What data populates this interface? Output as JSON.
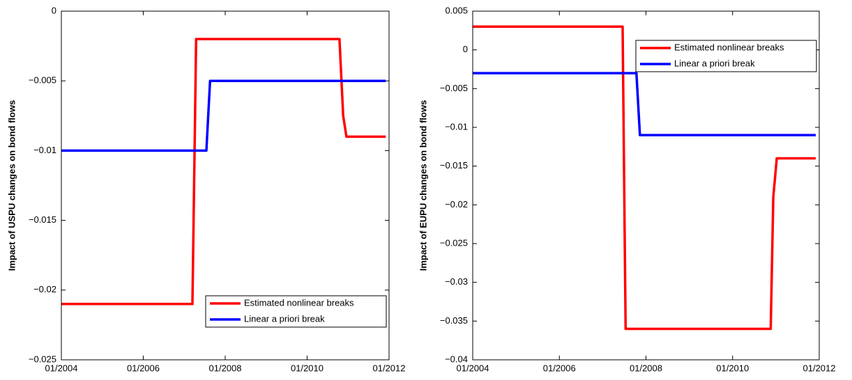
{
  "chart_data": [
    {
      "type": "line",
      "ylabel": "Impact of USPU changes on bond flows",
      "xlim": [
        2004,
        2012
      ],
      "xticks": [
        {
          "value": 2004,
          "label": "01/2004"
        },
        {
          "value": 2006,
          "label": "01/2006"
        },
        {
          "value": 2008,
          "label": "01/2008"
        },
        {
          "value": 2010,
          "label": "01/2010"
        },
        {
          "value": 2012,
          "label": "01/2012"
        }
      ],
      "ylim": [
        -0.025,
        0
      ],
      "yticks": [
        {
          "value": -0.025,
          "label": "−0.025"
        },
        {
          "value": -0.02,
          "label": "−0.02"
        },
        {
          "value": -0.015,
          "label": "−0.015"
        },
        {
          "value": -0.01,
          "label": "−0.01"
        },
        {
          "value": -0.005,
          "label": "−0.005"
        },
        0
      ],
      "legend": "lower right",
      "series": [
        {
          "name": "Estimated nonlinear breaks",
          "color": "#ff0000",
          "x": [
            2004,
            2007.2,
            2007.29,
            2010.79,
            2010.88,
            2010.96,
            2011.92
          ],
          "values": [
            -0.021,
            -0.021,
            -0.002,
            -0.002,
            -0.0075,
            -0.009,
            -0.009
          ]
        },
        {
          "name": "Linear a priori break",
          "color": "#0000ff",
          "x": [
            2004,
            2007.54,
            2007.63,
            2011.92
          ],
          "values": [
            -0.01,
            -0.01,
            -0.005,
            -0.005
          ]
        }
      ]
    },
    {
      "type": "line",
      "ylabel": "Impact of EUPU changes on bond flows",
      "xlim": [
        2004,
        2012
      ],
      "xticks": [
        {
          "value": 2004,
          "label": "01/2004"
        },
        {
          "value": 2006,
          "label": "01/2006"
        },
        {
          "value": 2008,
          "label": "01/2008"
        },
        {
          "value": 2010,
          "label": "01/2010"
        },
        {
          "value": 2012,
          "label": "01/2012"
        }
      ],
      "ylim": [
        -0.04,
        0.005
      ],
      "yticks": [
        {
          "value": -0.04,
          "label": "−0.04"
        },
        {
          "value": -0.035,
          "label": "−0.035"
        },
        {
          "value": -0.03,
          "label": "−0.03"
        },
        {
          "value": -0.025,
          "label": "−0.025"
        },
        {
          "value": -0.02,
          "label": "−0.02"
        },
        {
          "value": -0.015,
          "label": "−0.015"
        },
        {
          "value": -0.01,
          "label": "−0.01"
        },
        {
          "value": -0.005,
          "label": "−0.005"
        },
        0,
        0.005
      ],
      "legend": "upper right",
      "series": [
        {
          "name": "Estimated nonlinear breaks",
          "color": "#ff0000",
          "x": [
            2004,
            2007.46,
            2007.53,
            2010.88,
            2010.94,
            2011.02,
            2011.92
          ],
          "values": [
            0.003,
            0.003,
            -0.036,
            -0.036,
            -0.019,
            -0.014,
            -0.014
          ]
        },
        {
          "name": "Linear a priori break",
          "color": "#0000ff",
          "x": [
            2004,
            2007.78,
            2007.86,
            2011.92
          ],
          "values": [
            -0.003,
            -0.003,
            -0.011,
            -0.011
          ]
        }
      ]
    }
  ]
}
